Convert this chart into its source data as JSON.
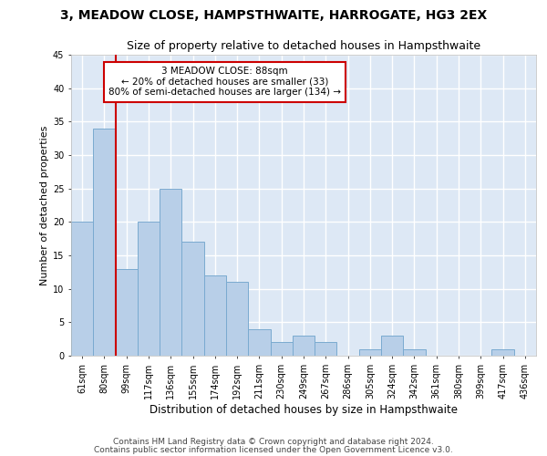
{
  "title": "3, MEADOW CLOSE, HAMPSTHWAITE, HARROGATE, HG3 2EX",
  "subtitle": "Size of property relative to detached houses in Hampsthwaite",
  "xlabel": "Distribution of detached houses by size in Hampsthwaite",
  "ylabel": "Number of detached properties",
  "categories": [
    "61sqm",
    "80sqm",
    "99sqm",
    "117sqm",
    "136sqm",
    "155sqm",
    "174sqm",
    "192sqm",
    "211sqm",
    "230sqm",
    "249sqm",
    "267sqm",
    "286sqm",
    "305sqm",
    "324sqm",
    "342sqm",
    "361sqm",
    "380sqm",
    "399sqm",
    "417sqm",
    "436sqm"
  ],
  "values": [
    20,
    34,
    13,
    20,
    25,
    17,
    12,
    11,
    4,
    2,
    3,
    2,
    0,
    1,
    3,
    1,
    0,
    0,
    0,
    1,
    0
  ],
  "bar_color": "#b8cfe8",
  "bar_edge_color": "#7aaad0",
  "highlight_bar_index": 1,
  "highlight_color": "#cc0000",
  "annotation_line1": "3 MEADOW CLOSE: 88sqm",
  "annotation_line2": "← 20% of detached houses are smaller (33)",
  "annotation_line3": "80% of semi-detached houses are larger (134) →",
  "annotation_box_color": "#ffffff",
  "annotation_box_edge": "#cc0000",
  "ylim_min": 0,
  "ylim_max": 45,
  "yticks": [
    0,
    5,
    10,
    15,
    20,
    25,
    30,
    35,
    40,
    45
  ],
  "axes_background": "#dde8f5",
  "grid_color": "#ffffff",
  "footer_line1": "Contains HM Land Registry data © Crown copyright and database right 2024.",
  "footer_line2": "Contains public sector information licensed under the Open Government Licence v3.0.",
  "title_fontsize": 10,
  "subtitle_fontsize": 9,
  "xlabel_fontsize": 8.5,
  "ylabel_fontsize": 8,
  "tick_fontsize": 7,
  "footer_fontsize": 6.5,
  "annot_fontsize": 7.5
}
